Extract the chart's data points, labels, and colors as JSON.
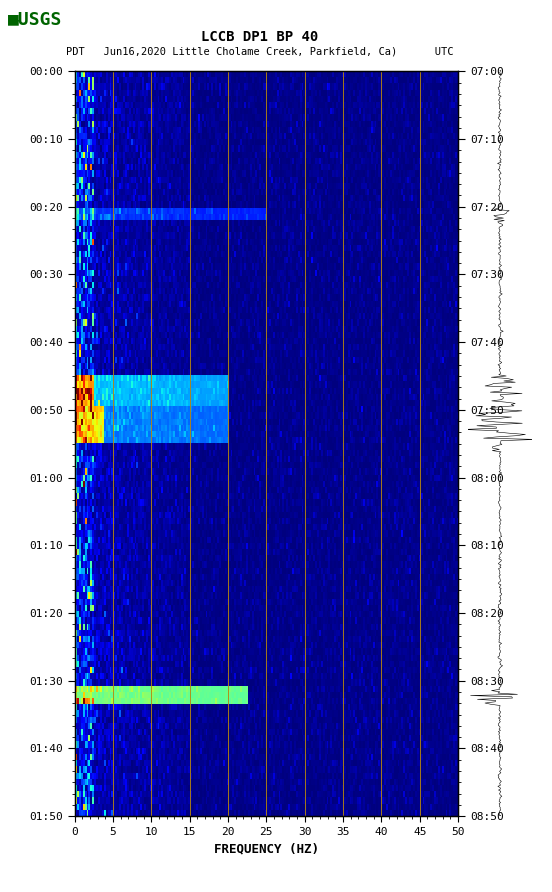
{
  "title_line1": "LCCB DP1 BP 40",
  "title_line2": "PDT   Jun16,2020 Little Cholame Creek, Parkfield, Ca)      UTC",
  "xlabel": "FREQUENCY (HZ)",
  "freq_min": 0,
  "freq_max": 50,
  "left_time_ticks": [
    "00:00",
    "00:10",
    "00:20",
    "00:30",
    "00:40",
    "00:50",
    "01:00",
    "01:10",
    "01:20",
    "01:30",
    "01:40",
    "01:50"
  ],
  "right_time_ticks": [
    "07:00",
    "07:10",
    "07:20",
    "07:30",
    "07:40",
    "07:50",
    "08:00",
    "08:10",
    "08:20",
    "08:30",
    "08:40",
    "08:50"
  ],
  "freq_ticks": [
    0,
    5,
    10,
    15,
    20,
    25,
    30,
    35,
    40,
    45,
    50
  ],
  "vertical_lines_freq": [
    5,
    10,
    15,
    20,
    25,
    30,
    35,
    40,
    45
  ],
  "background_color": "#ffffff",
  "usgs_logo_color": "#006400",
  "n_time": 120,
  "n_freq": 200,
  "seed": 42,
  "noise_base": 0.08,
  "low_freq_energy": 0.85,
  "mid_freq_energy": 0.25,
  "colormap": "jet"
}
